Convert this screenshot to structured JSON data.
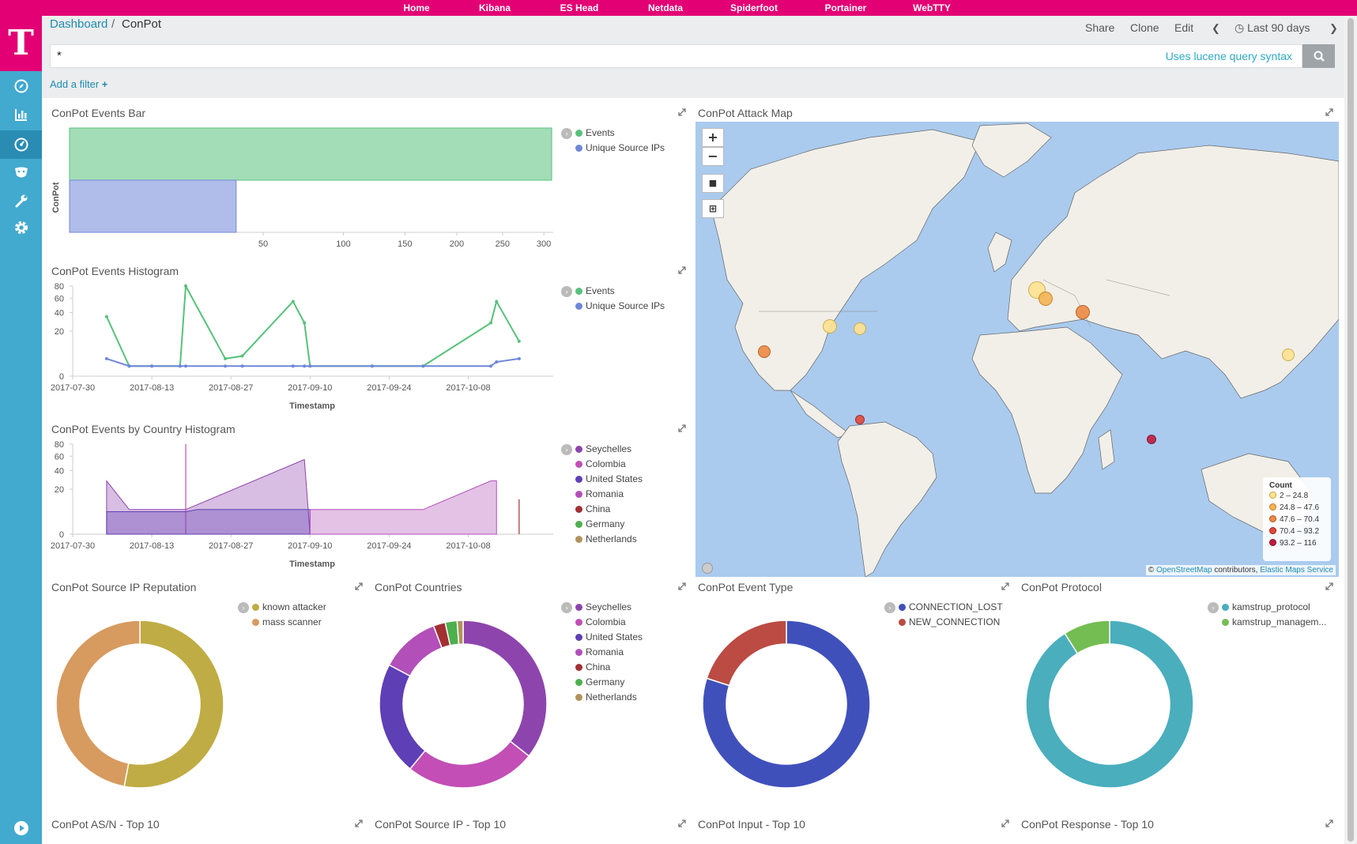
{
  "topnav": [
    "Home",
    "Kibana",
    "ES Head",
    "Netdata",
    "Spiderfoot",
    "Portainer",
    "WebTTY"
  ],
  "logo": "T",
  "sidebar": {
    "items": [
      "discover",
      "visualize",
      "dashboard",
      "timelion",
      "dev-tools",
      "management"
    ]
  },
  "breadcrumb": {
    "root": "Dashboard",
    "sep": "/",
    "current": "ConPot"
  },
  "toolbar": {
    "share": "Share",
    "clone": "Clone",
    "edit": "Edit",
    "time": "Last 90 days"
  },
  "query": {
    "value": "*",
    "syntax": "Uses lucene query syntax"
  },
  "add_filter": "Add a filter",
  "panels": {
    "bar": {
      "title": "ConPot Events Bar",
      "ylabel": "ConPot",
      "legend": [
        "Events",
        "Unique Source IPs"
      ]
    },
    "hist": {
      "title": "ConPot Events Histogram",
      "xlabel": "Timestamp",
      "legend": [
        "Events",
        "Unique Source IPs"
      ]
    },
    "country": {
      "title": "ConPot Events by Country Histogram",
      "xlabel": "Timestamp",
      "legend": [
        "Seychelles",
        "Colombia",
        "United States",
        "Romania",
        "China",
        "Germany",
        "Netherlands"
      ]
    },
    "map": {
      "title": "ConPot Attack Map",
      "legend_title": "Count",
      "legend": [
        "2 – 24.8",
        "24.8 – 47.6",
        "47.6 – 70.4",
        "70.4 – 93.2",
        "93.2 – 116"
      ],
      "attr_prefix": "©",
      "attr_osm": "OpenStreetMap",
      "attr_mid": "contributors",
      "attr_comma": ",",
      "attr_ems": "Elastic Maps Service"
    },
    "reputation": {
      "title": "ConPot Source IP Reputation",
      "legend": [
        "known attacker",
        "mass scanner"
      ]
    },
    "countries": {
      "title": "ConPot Countries",
      "legend": [
        "Seychelles",
        "Colombia",
        "United States",
        "Romania",
        "China",
        "Germany",
        "Netherlands"
      ]
    },
    "eventtype": {
      "title": "ConPot Event Type",
      "legend": [
        "CONNECTION_LOST",
        "NEW_CONNECTION"
      ]
    },
    "protocol": {
      "title": "ConPot Protocol",
      "legend": [
        "kamstrup_protocol",
        "kamstrup_managem..."
      ]
    },
    "asn": {
      "title": "ConPot AS/N - Top 10"
    },
    "srcip": {
      "title": "ConPot Source IP - Top 10"
    },
    "input": {
      "title": "ConPot Input - Top 10"
    },
    "response": {
      "title": "ConPot Response - Top 10"
    }
  },
  "colors": {
    "magenta": "#e20074",
    "sidebar": "#42a9cf",
    "events": "#57c17b",
    "unique": "#6f87d8",
    "seychelles": "#8e44ad",
    "colombia": "#c24eb6",
    "united_states": "#5e3fb5",
    "romania": "#b34fb8",
    "china": "#a23033",
    "germany": "#4db04e",
    "netherlands": "#b0935b",
    "known_attacker": "#bfac44",
    "mass_scanner": "#d79a5f",
    "connection_lost": "#4050bb",
    "new_connection": "#bb4b43",
    "kamstrup_protocol": "#4aaebd",
    "kamstrup_management": "#74bd52"
  },
  "chart_data": [
    {
      "type": "bar",
      "title": "ConPot Events Bar",
      "ylabel": "ConPot",
      "xscale": "sqrt",
      "categories": [
        "ConPot"
      ],
      "series": [
        {
          "name": "Events",
          "values": [
            310
          ]
        },
        {
          "name": "Unique Source IPs",
          "values": [
            37
          ]
        }
      ],
      "xticks": [
        50,
        100,
        150,
        200,
        250,
        300
      ]
    },
    {
      "type": "line",
      "title": "ConPot Events Histogram",
      "xlabel": "Timestamp",
      "yscale": "sqrt",
      "yticks": [
        0,
        20,
        40,
        60,
        80
      ],
      "xticks": [
        "2017-07-30",
        "2017-08-13",
        "2017-08-27",
        "2017-09-10",
        "2017-09-24",
        "2017-10-08"
      ],
      "x": [
        "2017-08-05",
        "2017-08-09",
        "2017-08-13",
        "2017-08-18",
        "2017-08-19",
        "2017-08-26",
        "2017-08-29",
        "2017-09-07",
        "2017-09-09",
        "2017-09-10",
        "2017-09-21",
        "2017-09-30",
        "2017-10-12",
        "2017-10-13",
        "2017-10-17"
      ],
      "series": [
        {
          "name": "Events",
          "values": [
            35,
            1,
            1,
            1,
            80,
            3,
            4,
            55,
            28,
            1,
            1,
            1,
            28,
            55,
            12
          ]
        },
        {
          "name": "Unique Source IPs",
          "values": [
            3,
            1,
            1,
            1,
            1,
            1,
            1,
            1,
            1,
            1,
            1,
            1,
            1,
            2,
            3
          ]
        }
      ]
    },
    {
      "type": "area",
      "title": "ConPot Events by Country Histogram",
      "xlabel": "Timestamp",
      "yscale": "sqrt",
      "yticks": [
        0,
        20,
        40,
        60,
        80
      ],
      "xticks": [
        "2017-07-30",
        "2017-08-13",
        "2017-08-27",
        "2017-09-10",
        "2017-09-24",
        "2017-10-08"
      ],
      "series": [
        {
          "name": "Seychelles",
          "x": [
            "2017-08-05",
            "2017-08-09",
            "2017-08-19",
            "2017-09-09",
            "2017-09-10"
          ],
          "values": [
            28,
            6,
            6,
            55,
            0
          ]
        },
        {
          "name": "Colombia",
          "x": [
            "2017-08-19"
          ],
          "values": [
            80
          ]
        },
        {
          "name": "United States",
          "x": [
            "2017-08-05",
            "2017-08-19",
            "2017-08-21",
            "2017-08-26",
            "2017-09-10"
          ],
          "values": [
            5,
            5,
            6,
            6,
            6
          ]
        },
        {
          "name": "Romania",
          "x": [
            "2017-09-10",
            "2017-09-30",
            "2017-10-12",
            "2017-10-13"
          ],
          "values": [
            6,
            6,
            28,
            28
          ]
        },
        {
          "name": "China",
          "x": [
            "2017-10-17"
          ],
          "values": [
            12
          ]
        }
      ]
    },
    {
      "type": "pie",
      "title": "ConPot Source IP Reputation",
      "categories": [
        "known attacker",
        "mass scanner"
      ],
      "values": [
        53,
        47
      ]
    },
    {
      "type": "pie",
      "title": "ConPot Countries",
      "categories": [
        "Seychelles",
        "Colombia",
        "United States",
        "Romania",
        "China",
        "Germany",
        "Netherlands"
      ],
      "values": [
        31,
        22,
        19,
        10,
        2,
        2,
        1
      ]
    },
    {
      "type": "pie",
      "title": "ConPot Event Type",
      "categories": [
        "CONNECTION_LOST",
        "NEW_CONNECTION"
      ],
      "values": [
        80,
        20
      ]
    },
    {
      "type": "pie",
      "title": "ConPot Protocol",
      "categories": [
        "kamstrup_protocol",
        "kamstrup_managem..."
      ],
      "values": [
        91,
        9
      ]
    }
  ]
}
